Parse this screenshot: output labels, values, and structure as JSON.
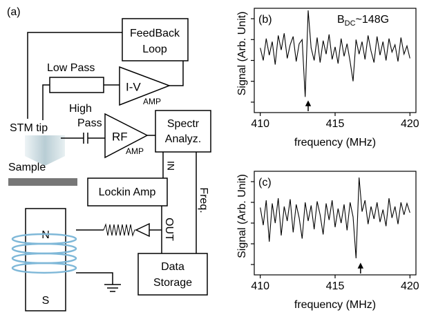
{
  "diagram": {
    "label": "(a)",
    "feedback_loop": [
      "FeedBack",
      "Loop"
    ],
    "low_pass": "Low Pass",
    "iv_amp": [
      "I-V",
      "AMP"
    ],
    "high_pass": [
      "High",
      "Pass"
    ],
    "rf_amp": [
      "RF",
      "AMP"
    ],
    "spectrum_analyzer": [
      "Spectr",
      "Analyz."
    ],
    "stm_tip": "STM tip",
    "sample": "Sample",
    "lockin_amp": "Lockin Amp",
    "in": "IN",
    "freq": "Freq.",
    "out": "OUT",
    "north": "N",
    "south": "S",
    "data_storage": [
      "Data",
      "Storage"
    ]
  },
  "chart_data": [
    {
      "type": "line",
      "panel": "(b)",
      "annotation": {
        "main": "B",
        "sub": "DC",
        "rest": "~148G"
      },
      "x_label": "frequency (MHz)",
      "y_label": "Signal  (Arb. Unit)",
      "color": "#000000",
      "marker_x": 413.2,
      "x": [
        410,
        410.2,
        410.4,
        410.6,
        410.8,
        411,
        411.2,
        411.4,
        411.6,
        411.8,
        412,
        412.2,
        412.4,
        412.6,
        412.8,
        413,
        413.2,
        413.4,
        413.6,
        413.8,
        414,
        414.2,
        414.4,
        414.6,
        414.8,
        415,
        415.2,
        415.4,
        415.6,
        415.8,
        416,
        416.2,
        416.4,
        416.6,
        416.8,
        417,
        417.2,
        417.4,
        417.6,
        417.8,
        418,
        418.2,
        418.4,
        418.6,
        418.8,
        419,
        419.2,
        419.4,
        419.6,
        419.8,
        420
      ],
      "values": [
        6.2,
        5.0,
        7.1,
        5.5,
        6.8,
        4.6,
        7.4,
        6.0,
        7.6,
        5.2,
        6.5,
        7.3,
        4.9,
        6.6,
        7.0,
        1.5,
        9.8,
        6.2,
        5.0,
        7.2,
        4.8,
        6.9,
        5.6,
        7.5,
        5.1,
        6.3,
        4.7,
        7.1,
        5.4,
        6.6,
        4.9,
        3.0,
        7.0,
        5.6,
        6.8,
        5.1,
        7.4,
        5.9,
        4.8,
        7.3,
        5.5,
        6.8,
        5.0,
        7.1,
        5.8,
        6.5,
        4.9,
        7.2,
        5.6,
        6.4,
        5.2
      ],
      "xlim": [
        409.6,
        420.4
      ],
      "xticks": [
        410,
        415,
        420
      ],
      "ylim": [
        0,
        10
      ],
      "yticks": [
        1,
        3,
        5,
        7,
        9
      ]
    },
    {
      "type": "line",
      "panel": "(c)",
      "x_label": "frequency (MHz)",
      "y_label": "Signal  (Arb. Unit)",
      "color": "#000000",
      "marker_x": 416.7,
      "x": [
        410,
        410.2,
        410.4,
        410.6,
        410.8,
        411,
        411.2,
        411.4,
        411.6,
        411.8,
        412,
        412.2,
        412.4,
        412.6,
        412.8,
        413,
        413.2,
        413.4,
        413.6,
        413.8,
        414,
        414.2,
        414.4,
        414.6,
        414.8,
        415,
        415.2,
        415.4,
        415.6,
        415.8,
        416,
        416.2,
        416.4,
        416.6,
        416.8,
        417,
        417.2,
        417.4,
        417.6,
        417.8,
        418,
        418.2,
        418.4,
        418.6,
        418.8,
        419,
        419.2,
        419.4,
        419.6,
        419.8,
        420
      ],
      "values": [
        6.5,
        4.8,
        7.2,
        3.2,
        6.9,
        5.0,
        7.4,
        3.8,
        6.6,
        5.2,
        7.3,
        4.1,
        6.8,
        5.5,
        3.5,
        7.0,
        5.2,
        6.7,
        4.4,
        7.1,
        5.8,
        3.9,
        6.9,
        5.3,
        7.2,
        4.6,
        6.4,
        5.0,
        6.8,
        4.3,
        7.0,
        5.6,
        1.6,
        9.4,
        6.1,
        7.2,
        4.9,
        6.6,
        5.4,
        7.0,
        5.1,
        6.3,
        4.7,
        7.4,
        5.5,
        6.6,
        4.9,
        7.0,
        5.8,
        6.9,
        6.0
      ],
      "xlim": [
        409.6,
        420.4
      ],
      "xticks": [
        410,
        415,
        420
      ],
      "ylim": [
        0,
        10
      ],
      "yticks": [
        1,
        3,
        5,
        7,
        9
      ]
    }
  ]
}
